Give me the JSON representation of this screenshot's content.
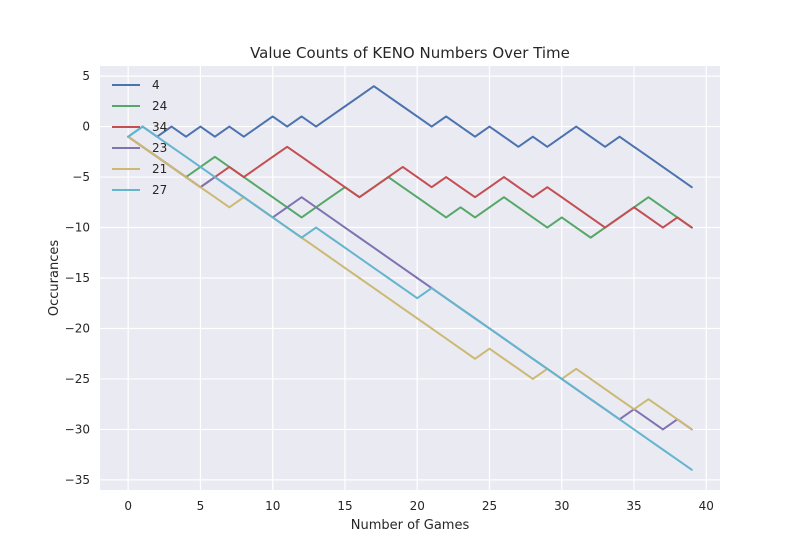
{
  "chart_data": {
    "type": "line",
    "title": "Value Counts of KENO Numbers Over Time",
    "xlabel": "Number of Games",
    "ylabel": "Occurances",
    "xlim": [
      -1.95,
      40.95
    ],
    "ylim": [
      -36.0,
      6.0
    ],
    "xticks": [
      0,
      5,
      10,
      15,
      20,
      25,
      30,
      35,
      40
    ],
    "yticks": [
      5,
      0,
      -5,
      -10,
      -15,
      -20,
      -25,
      -30,
      -35
    ],
    "grid": true,
    "legend_position": "top-left",
    "x": [
      0,
      1,
      2,
      3,
      4,
      5,
      6,
      7,
      8,
      9,
      10,
      11,
      12,
      13,
      14,
      15,
      16,
      17,
      18,
      19,
      20,
      21,
      22,
      23,
      24,
      25,
      26,
      27,
      28,
      29,
      30,
      31,
      32,
      33,
      34,
      35,
      36,
      37,
      38,
      39
    ],
    "series": [
      {
        "name": "4",
        "color": "#4c72b0",
        "values": [
          -1,
          0,
          -1,
          0,
          -1,
          0,
          -1,
          0,
          -1,
          0,
          1,
          0,
          1,
          0,
          1,
          2,
          3,
          4,
          3,
          2,
          1,
          0,
          1,
          0,
          -1,
          0,
          -1,
          -2,
          -1,
          -2,
          -1,
          0,
          -1,
          -2,
          -1,
          -2,
          -3,
          -4,
          -5,
          -6
        ]
      },
      {
        "name": "24",
        "color": "#55a868",
        "values": [
          -1,
          -2,
          -3,
          -4,
          -5,
          -4,
          -3,
          -4,
          -5,
          -6,
          -7,
          -8,
          -9,
          -8,
          -7,
          -6,
          -7,
          -6,
          -5,
          -6,
          -7,
          -8,
          -9,
          -8,
          -9,
          -8,
          -7,
          -8,
          -9,
          -10,
          -9,
          -10,
          -11,
          -10,
          -9,
          -8,
          -7,
          -8,
          -9,
          -10
        ]
      },
      {
        "name": "34",
        "color": "#c44e52",
        "values": [
          -1,
          -2,
          -3,
          -4,
          -5,
          -6,
          -5,
          -4,
          -5,
          -4,
          -3,
          -2,
          -3,
          -4,
          -5,
          -6,
          -7,
          -6,
          -5,
          -4,
          -5,
          -6,
          -5,
          -6,
          -7,
          -6,
          -5,
          -6,
          -7,
          -6,
          -7,
          -8,
          -9,
          -10,
          -9,
          -8,
          -9,
          -10,
          -9,
          -10
        ]
      },
      {
        "name": "23",
        "color": "#8172b2",
        "values": [
          -1,
          -2,
          -3,
          -4,
          -5,
          -6,
          -5,
          -6,
          -7,
          -8,
          -9,
          -8,
          -7,
          -8,
          -9,
          -10,
          -11,
          -12,
          -13,
          -14,
          -15,
          -16,
          -17,
          -18,
          -19,
          -20,
          -21,
          -22,
          -23,
          -24,
          -25,
          -26,
          -27,
          -28,
          -29,
          -28,
          -29,
          -30,
          -29,
          -30
        ]
      },
      {
        "name": "21",
        "color": "#ccb974",
        "values": [
          -1,
          -2,
          -3,
          -4,
          -5,
          -6,
          -7,
          -8,
          -7,
          -8,
          -9,
          -10,
          -11,
          -12,
          -13,
          -14,
          -15,
          -16,
          -17,
          -18,
          -19,
          -20,
          -21,
          -22,
          -23,
          -22,
          -23,
          -24,
          -25,
          -24,
          -25,
          -24,
          -25,
          -26,
          -27,
          -28,
          -27,
          -28,
          -29,
          -30
        ]
      },
      {
        "name": "27",
        "color": "#64b5cd",
        "values": [
          -1,
          0,
          -1,
          -2,
          -3,
          -4,
          -5,
          -6,
          -7,
          -8,
          -9,
          -10,
          -11,
          -10,
          -11,
          -12,
          -13,
          -14,
          -15,
          -16,
          -17,
          -16,
          -17,
          -18,
          -19,
          -20,
          -21,
          -22,
          -23,
          -24,
          -25,
          -26,
          -27,
          -28,
          -29,
          -30,
          -31,
          -32,
          -33,
          -34
        ]
      }
    ]
  }
}
